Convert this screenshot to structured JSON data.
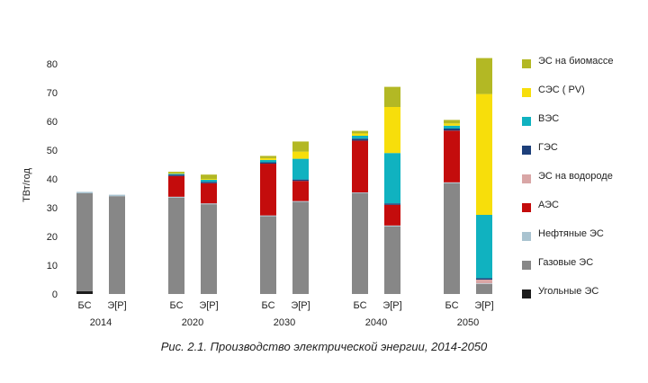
{
  "chart_data": {
    "type": "bar",
    "stacked": true,
    "ylabel": "ТВт/год",
    "ylim": [
      0,
      80
    ],
    "yticks": [
      0,
      10,
      20,
      30,
      40,
      50,
      60,
      70,
      80
    ],
    "groups": [
      {
        "year": "2014",
        "bars": [
          {
            "label": "БС",
            "values": {
              "coal": 1.0,
              "gas": 34.0,
              "oil": 0.5,
              "nuclear": 0,
              "h2": 0,
              "hydro": 0,
              "wind": 0,
              "solar": 0,
              "bio": 0
            }
          },
          {
            "label": "Э[Р]",
            "values": {
              "coal": 0,
              "gas": 34.0,
              "oil": 0.5,
              "nuclear": 0,
              "h2": 0,
              "hydro": 0,
              "wind": 0,
              "solar": 0,
              "bio": 0
            }
          }
        ]
      },
      {
        "year": "2020",
        "bars": [
          {
            "label": "БС",
            "values": {
              "coal": 0,
              "gas": 33.5,
              "oil": 0.3,
              "nuclear": 7.2,
              "h2": 0,
              "hydro": 0.5,
              "wind": 0.3,
              "solar": 0.2,
              "bio": 0.5
            }
          },
          {
            "label": "Э[Р]",
            "values": {
              "coal": 0,
              "gas": 31.2,
              "oil": 0.3,
              "nuclear": 7.0,
              "h2": 0,
              "hydro": 0.5,
              "wind": 0.7,
              "solar": 0.3,
              "bio": 1.5
            }
          }
        ]
      },
      {
        "year": "2030",
        "bars": [
          {
            "label": "БС",
            "values": {
              "coal": 0,
              "gas": 27.0,
              "oil": 0.3,
              "nuclear": 18.0,
              "h2": 0,
              "hydro": 0.5,
              "wind": 0.8,
              "solar": 0.6,
              "bio": 0.8
            }
          },
          {
            "label": "Э[Р]",
            "values": {
              "coal": 0,
              "gas": 32.0,
              "oil": 0.3,
              "nuclear": 7.0,
              "h2": 0,
              "hydro": 0.5,
              "wind": 7.2,
              "solar": 2.5,
              "bio": 3.5
            }
          }
        ]
      },
      {
        "year": "2040",
        "bars": [
          {
            "label": "БС",
            "values": {
              "coal": 0,
              "gas": 35.0,
              "oil": 0.3,
              "nuclear": 18.0,
              "h2": 0,
              "hydro": 0.7,
              "wind": 1.0,
              "solar": 0.8,
              "bio": 0.9
            }
          },
          {
            "label": "Э[Р]",
            "values": {
              "coal": 0,
              "gas": 23.5,
              "oil": 0.3,
              "nuclear": 7.2,
              "h2": 0,
              "hydro": 0.5,
              "wind": 17.5,
              "solar": 16.0,
              "bio": 7.0
            }
          }
        ]
      },
      {
        "year": "2050",
        "bars": [
          {
            "label": "БС",
            "values": {
              "coal": 0,
              "gas": 38.5,
              "oil": 0.3,
              "nuclear": 18.0,
              "h2": 0,
              "hydro": 0.7,
              "wind": 1.0,
              "solar": 0.8,
              "bio": 1.2
            }
          },
          {
            "label": "Э[Р]",
            "values": {
              "coal": 0,
              "gas": 3.5,
              "oil": 0.2,
              "nuclear": 0,
              "h2": 1.3,
              "hydro": 0.5,
              "wind": 22.0,
              "solar": 42.0,
              "bio": 12.5
            }
          }
        ]
      }
    ],
    "series": [
      {
        "key": "bio",
        "name": "ЭС на биомассе",
        "color": "#b3b824"
      },
      {
        "key": "solar",
        "name": "СЭС ( PV)",
        "color": "#f7de0b"
      },
      {
        "key": "wind",
        "name": "ВЭС",
        "color": "#10b2c0"
      },
      {
        "key": "hydro",
        "name": "ГЭС",
        "color": "#1d3f7a"
      },
      {
        "key": "h2",
        "name": "ЭС на водороде",
        "color": "#d9a6a6"
      },
      {
        "key": "nuclear",
        "name": "АЭС",
        "color": "#c40c0c"
      },
      {
        "key": "oil",
        "name": "Нефтяные ЭС",
        "color": "#a9c3d0"
      },
      {
        "key": "gas",
        "name": "Газовые ЭС",
        "color": "#878787"
      },
      {
        "key": "coal",
        "name": "Угольные ЭС",
        "color": "#1c1c1c"
      }
    ],
    "stack_order": [
      "coal",
      "gas",
      "oil",
      "h2",
      "nuclear",
      "hydro",
      "wind",
      "solar",
      "bio"
    ],
    "legend_position": "right",
    "grid": false
  },
  "caption": "Рис. 2.1. Производство электрической энергии, 2014-2050"
}
